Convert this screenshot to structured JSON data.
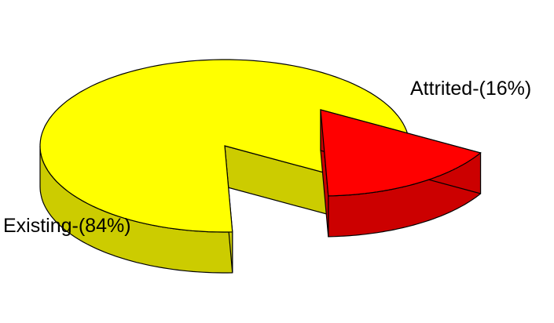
{
  "chart_data": {
    "type": "pie",
    "style": "3d-exploded",
    "slices": [
      {
        "name": "Existing",
        "label": "Existing-(84%)",
        "value": 84,
        "color": "#FFFF00",
        "side_color": "#CCCC00"
      },
      {
        "name": "Attrited",
        "label": "Attrited-(16%)",
        "value": 16,
        "color": "#FF0000",
        "side_color": "#CC0000"
      }
    ],
    "legend": "none"
  }
}
